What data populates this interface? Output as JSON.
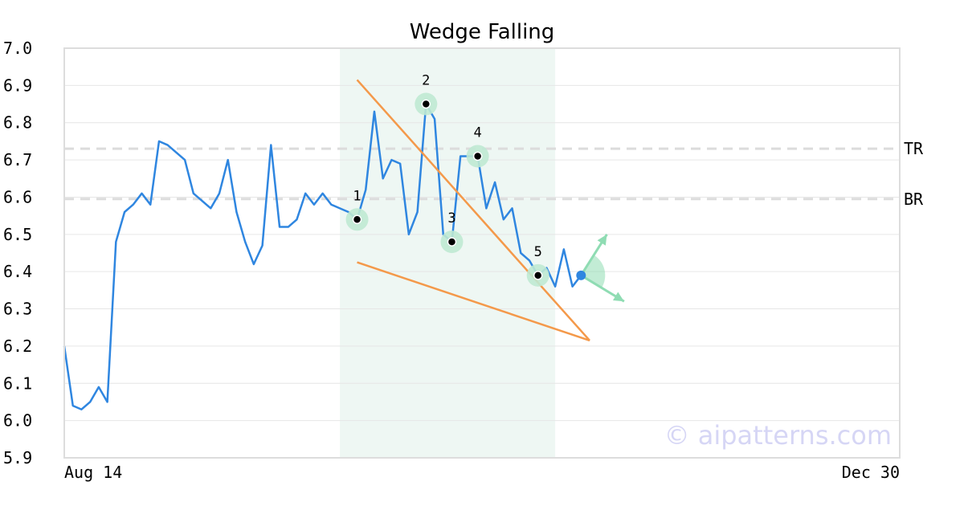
{
  "chart_data": {
    "type": "line",
    "title": "Wedge Falling",
    "xlabel": "",
    "ylabel": "",
    "ylim": [
      5.9,
      7.0
    ],
    "y_ticks": [
      "7.0",
      "6.9",
      "6.8",
      "6.7",
      "6.6",
      "6.5",
      "6.4",
      "6.3",
      "6.2",
      "6.1",
      "6.0",
      "5.9"
    ],
    "x_tick_labels": [
      {
        "index": 0,
        "label": "Aug 14"
      },
      {
        "index": 97,
        "label": "Dec 30"
      }
    ],
    "grid": true,
    "x_count": 98,
    "series": [
      {
        "color": "#2f86e0",
        "values": [
          6.2,
          6.04,
          6.03,
          6.05,
          6.09,
          6.05,
          6.48,
          6.56,
          6.58,
          6.61,
          6.58,
          6.75,
          6.74,
          6.72,
          6.7,
          6.61,
          6.59,
          6.57,
          6.61,
          6.7,
          6.56,
          6.48,
          6.42,
          6.47,
          6.74,
          6.52,
          6.52,
          6.54,
          6.61,
          6.58,
          6.61,
          6.58,
          6.57,
          6.56,
          6.54,
          6.62,
          6.83,
          6.65,
          6.7,
          6.69,
          6.5,
          6.56,
          6.85,
          6.81,
          6.5,
          6.48,
          6.71,
          6.71,
          6.71,
          6.57,
          6.64,
          6.54,
          6.57,
          6.45,
          6.43,
          6.39,
          6.41,
          6.36,
          6.46,
          6.36,
          6.39
        ]
      }
    ],
    "last_point": {
      "index": 60,
      "value": 6.39,
      "color": "#2f86e0"
    },
    "highlight_region": {
      "x_start": 32,
      "x_end": 57,
      "color": "#eef7f3"
    },
    "levels": [
      {
        "label": "TR",
        "value": 6.73
      },
      {
        "label": "BR",
        "value": 6.595
      }
    ],
    "wedge_lines": [
      {
        "color": "#f4994a",
        "from": {
          "x": 34,
          "y": 6.915
        },
        "to": {
          "x": 61,
          "y": 6.215
        }
      },
      {
        "color": "#f4994a",
        "from": {
          "x": 34,
          "y": 6.425
        },
        "to": {
          "x": 61,
          "y": 6.215
        }
      }
    ],
    "pattern_points": [
      {
        "label": "1",
        "x": 34,
        "y": 6.54
      },
      {
        "label": "2",
        "x": 42,
        "y": 6.85
      },
      {
        "label": "3",
        "x": 45,
        "y": 6.48
      },
      {
        "label": "4",
        "x": 48,
        "y": 6.71
      },
      {
        "label": "5",
        "x": 55,
        "y": 6.39
      }
    ],
    "projection": {
      "color": "#8fdcb3",
      "origin": {
        "x": 60,
        "y": 6.39
      },
      "up_target": {
        "x": 63,
        "y": 6.5
      },
      "down_target": {
        "x": 65,
        "y": 6.32
      }
    },
    "watermark": "© aipatterns.com"
  }
}
